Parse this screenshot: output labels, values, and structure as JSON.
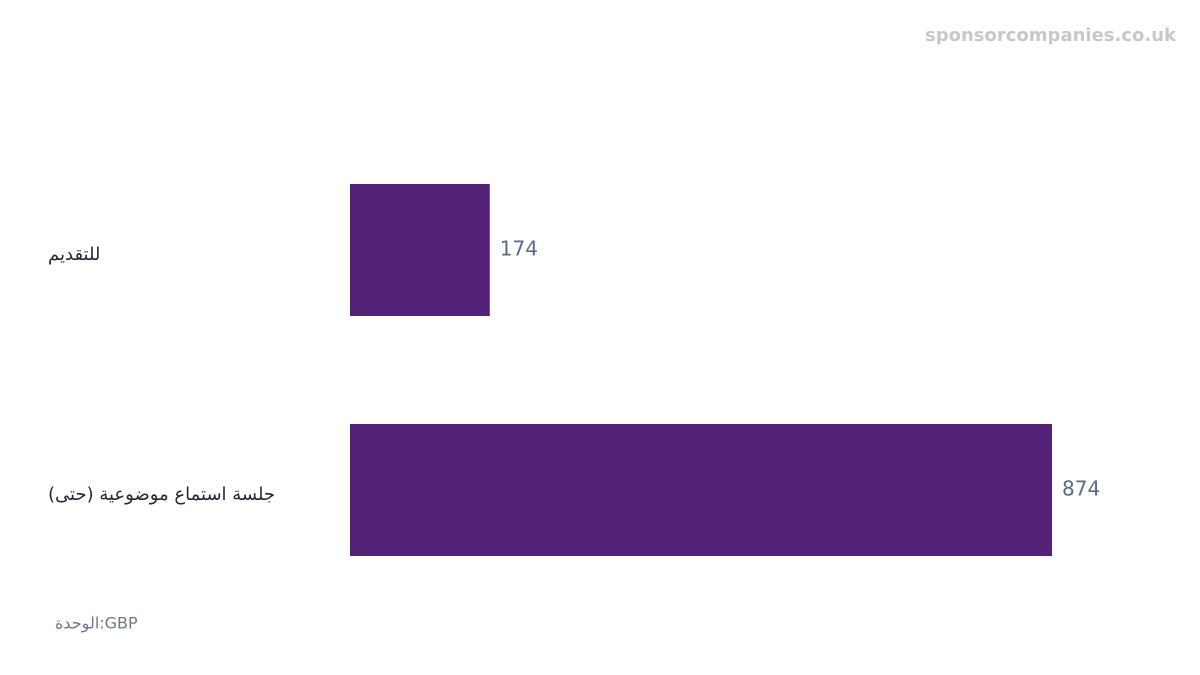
{
  "chart_data": {
    "type": "bar",
    "orientation": "horizontal",
    "watermark": "sponsorcompanies.co.uk",
    "unit_label": "الوحدة:GBP",
    "categories": [
      "للتقديم",
      "جلسة استماع موضوعية (حتى)"
    ],
    "values": [
      174,
      874
    ],
    "color": "#532277"
  }
}
